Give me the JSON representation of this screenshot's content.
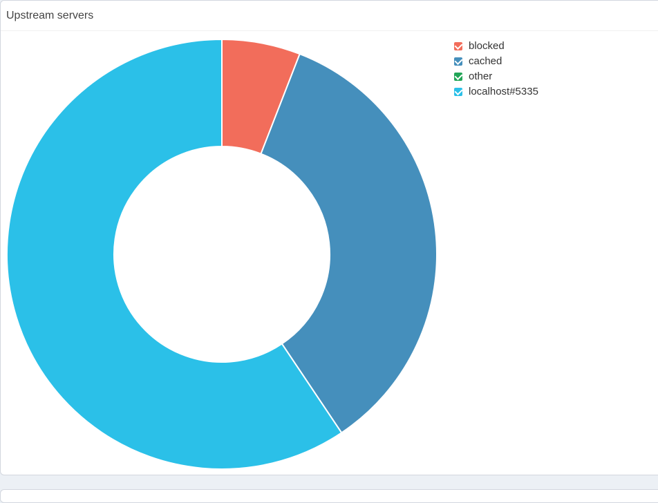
{
  "panel": {
    "title": "Upstream servers"
  },
  "chart_data": {
    "type": "pie",
    "variant": "doughnut",
    "title": "Upstream servers",
    "categories": [
      "blocked",
      "cached",
      "other",
      "localhost#5335"
    ],
    "values": [
      5.9,
      34.7,
      0,
      59.4
    ],
    "unit": "percent",
    "colors": [
      "#f26d5b",
      "#458fbc",
      "#22a557",
      "#2bc0e8"
    ],
    "legend_position": "top-right",
    "legend_checked": [
      true,
      true,
      true,
      true
    ]
  }
}
